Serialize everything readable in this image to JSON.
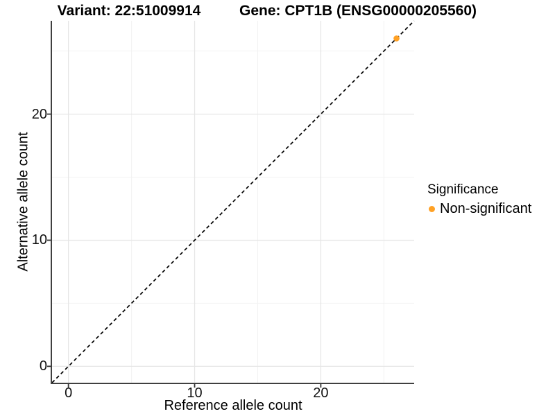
{
  "header": {
    "variant_title": "Variant: 22:51009914",
    "gene_title": "Gene: CPT1B (ENSG00000205560)"
  },
  "chart_data": {
    "type": "scatter",
    "xlabel": "Reference allele count",
    "ylabel": "Alternative allele count",
    "xlim": [
      -1.3,
      27.4
    ],
    "ylim": [
      -1.3,
      27.4
    ],
    "x_ticks": [
      0,
      10,
      20
    ],
    "y_ticks": [
      0,
      10,
      20
    ],
    "x_minor_ticks": [
      5,
      15,
      25
    ],
    "y_minor_ticks": [
      5,
      15,
      25
    ],
    "grid": "major and minor gridlines, white background",
    "reference_line": {
      "type": "identity",
      "slope": 1,
      "intercept": 0,
      "style": "dashed",
      "color": "#000000"
    },
    "series": [
      {
        "name": "Non-significant",
        "color": "#FFA125",
        "points": [
          {
            "x": 26,
            "y": 26
          }
        ]
      }
    ],
    "legend": {
      "title": "Significance",
      "position": "right",
      "items": [
        {
          "label": "Non-significant",
          "color": "#FFA125"
        }
      ]
    }
  },
  "colors": {
    "background": "#FFFFFF",
    "point": "#FFA125",
    "axis_line": "#404040",
    "tick_mark": "#333333",
    "grid_major": "#E6E6E6",
    "grid_minor": "#F2F2F2",
    "reference_line": "#000000",
    "text": "#000000"
  }
}
